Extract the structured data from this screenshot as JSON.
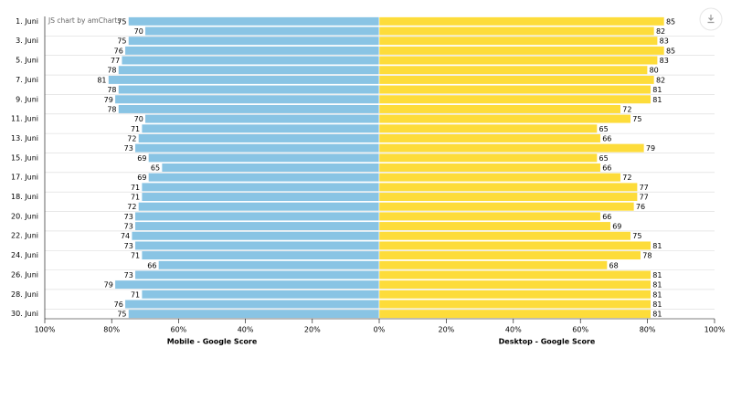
{
  "chart_data": {
    "type": "bar",
    "orientation": "horizontal",
    "watermark": "JS chart by amCharts",
    "categories": [
      "1. Juni",
      null,
      "3. Juni",
      null,
      "5. Juni",
      null,
      "7. Juni",
      null,
      "9. Juni",
      null,
      "11. Juni",
      null,
      "13. Juni",
      null,
      "15. Juni",
      null,
      "17. Juni",
      null,
      "18. Juni",
      null,
      "20. Juni",
      null,
      "22. Juni",
      null,
      "24. Juni",
      null,
      "26. Juni",
      null,
      "28. Juni",
      null,
      "30. Juni"
    ],
    "series": [
      {
        "name": "Mobile - Google Score",
        "color": "#89c4e4",
        "values": [
          75,
          70,
          75,
          76,
          77,
          78,
          81,
          78,
          79,
          78,
          70,
          71,
          72,
          73,
          69,
          65,
          69,
          71,
          71,
          72,
          73,
          73,
          74,
          73,
          71,
          66,
          73,
          79,
          71,
          76,
          75
        ],
        "xlim": [
          100,
          0
        ],
        "xticks": [
          {
            "value": 100,
            "label": "100%"
          },
          {
            "value": 80,
            "label": "80%"
          },
          {
            "value": 60,
            "label": "60%"
          },
          {
            "value": 40,
            "label": "40%"
          },
          {
            "value": 20,
            "label": "20%"
          },
          {
            "value": 0,
            "label": "0%"
          }
        ]
      },
      {
        "name": "Desktop - Google Score",
        "color": "#fddc3a",
        "values": [
          85,
          82,
          83,
          85,
          83,
          80,
          82,
          81,
          81,
          72,
          75,
          65,
          66,
          79,
          65,
          66,
          72,
          77,
          77,
          76,
          66,
          69,
          75,
          81,
          78,
          68,
          81,
          81,
          81,
          81,
          81
        ],
        "xlim": [
          0,
          100
        ],
        "xticks": [
          {
            "value": 20,
            "label": "20%"
          },
          {
            "value": 40,
            "label": "40%"
          },
          {
            "value": 60,
            "label": "60%"
          },
          {
            "value": 80,
            "label": "80%"
          },
          {
            "value": 100,
            "label": "100%"
          }
        ]
      }
    ]
  }
}
